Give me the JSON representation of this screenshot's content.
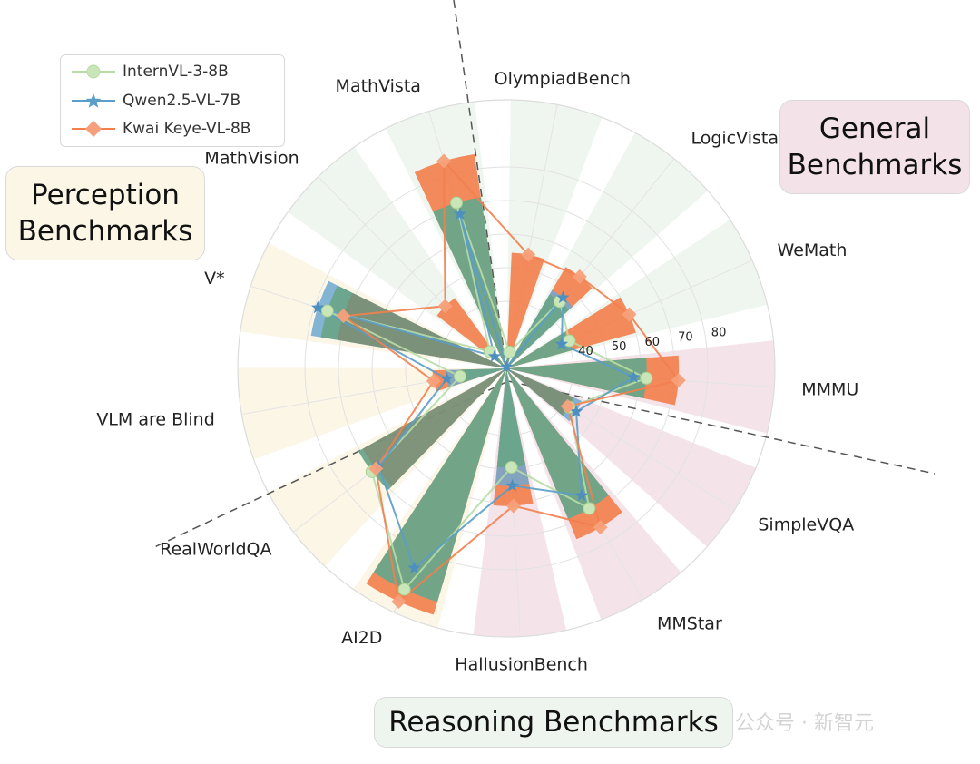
{
  "chart_data": {
    "type": "radar-bar",
    "categories": [
      "MMMU",
      "SimpleVQA",
      "MMStar",
      "HallusionBench",
      "AI2D",
      "RealWorldQA",
      "VLM are Blind",
      "V*",
      "MathVision",
      "MathVista",
      "OlympiadBench",
      "LogicVista",
      "WeMath"
    ],
    "category_groups": [
      "General",
      "General",
      "General",
      "General",
      "Perception",
      "Perception",
      "Perception",
      "Perception",
      "Reasoning",
      "Reasoning",
      "Reasoning",
      "Reasoning",
      "Reasoning"
    ],
    "radial_ticks": [
      40,
      50,
      60,
      70,
      80
    ],
    "series": [
      {
        "name": "InternVL-3-8B",
        "color": "#b7dca6",
        "values": [
          61.8,
          42.0,
          68.5,
          49.5,
          92.5,
          70.5,
          34.0,
          76.0,
          27.0,
          71.5,
          25.0,
          45.5,
          40.5
        ]
      },
      {
        "name": "Qwen2.5-VL-7B",
        "color": "#5a9dc8",
        "values": [
          58.0,
          44.5,
          64.0,
          55.0,
          85.5,
          68.0,
          38.0,
          79.0,
          25.0,
          68.0,
          20.5,
          47.0,
          38.0
        ]
      },
      {
        "name": "Kwai Keye-VL-8B",
        "color": "#f2804e",
        "values": [
          71.4,
          41.5,
          75.0,
          61.0,
          96.5,
          69.0,
          42.0,
          71.0,
          46.0,
          84.5,
          54.5,
          55.0,
          60.0
        ]
      }
    ]
  },
  "legend": {
    "items": [
      {
        "label": "InternVL-3-8B"
      },
      {
        "label": "Qwen2.5-VL-7B"
      },
      {
        "label": "Kwai Keye-VL-8B"
      }
    ]
  },
  "groups": {
    "general": "General Benchmarks",
    "perception": "Perception Benchmarks",
    "reasoning": "Reasoning Benchmarks"
  },
  "colors": {
    "green_bar": "#6aa58a",
    "orange_bar": "#f2804e",
    "blue_bar": "#6ea8d0",
    "general_bg": "#f3e3e9",
    "perception_bg": "#fcf6e6",
    "reasoning_bg": "#eef5ef"
  },
  "watermark": "公众号 · 新智元"
}
